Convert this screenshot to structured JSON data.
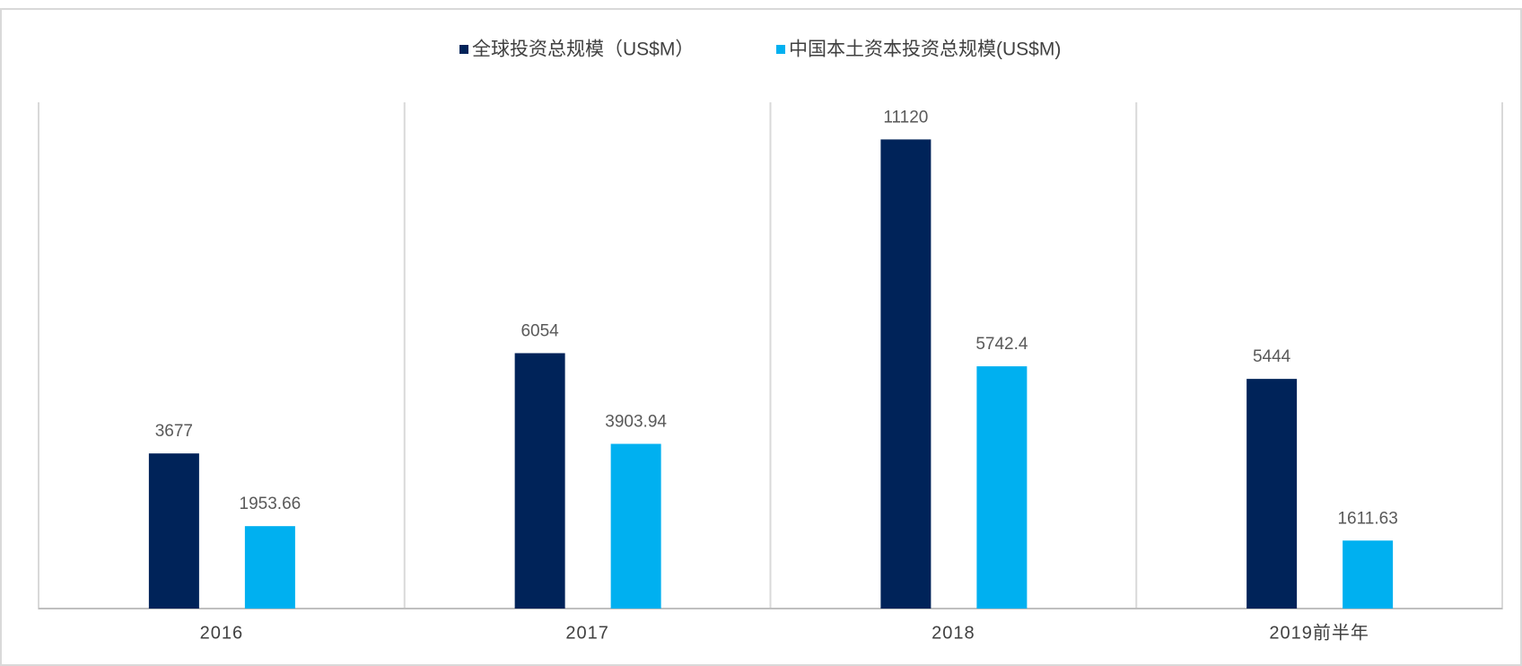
{
  "chart_data": {
    "type": "bar",
    "categories": [
      "2016",
      "2017",
      "2018",
      "2019前半年"
    ],
    "series": [
      {
        "name": "全球投资总规模（US$M）",
        "color": "#002359",
        "values": [
          3677,
          6054,
          11120,
          5444
        ]
      },
      {
        "name": "中国本土资本投资总规模(US$M)",
        "color": "#00b0f0",
        "values": [
          1953.66,
          3903.94,
          5742.4,
          1611.63
        ]
      }
    ],
    "ylim": [
      0,
      12000
    ],
    "legend": "top"
  }
}
